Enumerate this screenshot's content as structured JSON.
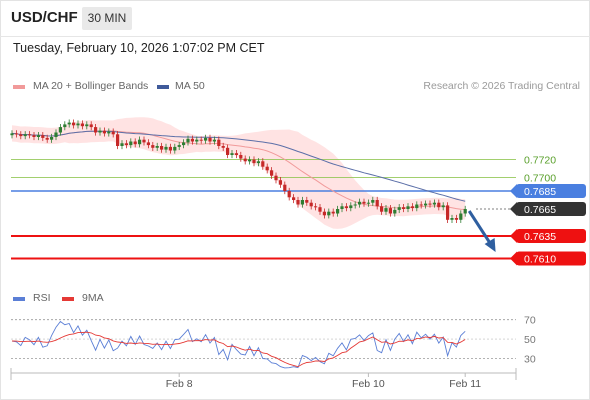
{
  "header": {
    "symbol": "USD/CHF",
    "timeframe": "30 MIN",
    "timestamp": "Tuesday, February 10, 2026 1:07:02 PM CET"
  },
  "legend": {
    "ma20_label": "MA 20 + Bollinger Bands",
    "ma50_label": "MA 50",
    "credit": "Research © 2026 Trading Central",
    "rsi_label": "RSI",
    "rsi_ma_label": "9MA"
  },
  "colors": {
    "band": "#ffd9d9",
    "ma20": "#f19a9a",
    "ma50": "#5b6fa8",
    "up": "#2e7d32",
    "down": "#c62828",
    "rsi": "#5b7fd6",
    "rsi_ma": "#e53935",
    "green_level": "#8bc34a",
    "blue_level": "#4a7fe0",
    "red_level": "#ee1111",
    "last_price": "#333333",
    "arrow": "#2f5fa0"
  },
  "chart_data": [
    {
      "type": "candlestick",
      "symbol": "USD/CHF",
      "timeframe": "30 MIN",
      "ylim": [
        0.7595,
        0.7775
      ],
      "x_ticks": [
        {
          "label": "Feb 8",
          "index": 38
        },
        {
          "label": "Feb 10",
          "index": 81
        },
        {
          "label": "Feb 11",
          "index": 103
        }
      ],
      "levels": [
        {
          "value": 0.772,
          "label": "0.7720",
          "kind": "resistance",
          "color": "#8bc34a"
        },
        {
          "value": 0.77,
          "label": "0.7700",
          "kind": "resistance",
          "color": "#8bc34a"
        },
        {
          "value": 0.7685,
          "label": "0.7685",
          "kind": "pivot",
          "color": "#4a7fe0"
        },
        {
          "value": 0.7665,
          "label": "0.7665",
          "kind": "last",
          "color": "#333333"
        },
        {
          "value": 0.7635,
          "label": "0.7635",
          "kind": "support",
          "color": "#ee1111"
        },
        {
          "value": 0.761,
          "label": "0.7610",
          "kind": "support",
          "color": "#ee1111"
        }
      ],
      "forecast_arrow": {
        "from_index": 103,
        "from": 0.7665,
        "to_index": 109,
        "to": 0.7615
      },
      "close": [
        0.7749,
        0.7748,
        0.7746,
        0.7748,
        0.7747,
        0.7745,
        0.7747,
        0.7744,
        0.7742,
        0.7745,
        0.775,
        0.7756,
        0.7759,
        0.7761,
        0.7758,
        0.776,
        0.7757,
        0.7759,
        0.7756,
        0.775,
        0.7752,
        0.7749,
        0.7751,
        0.7748,
        0.7735,
        0.7738,
        0.7736,
        0.774,
        0.7737,
        0.7742,
        0.7739,
        0.7736,
        0.7733,
        0.7735,
        0.7731,
        0.7734,
        0.773,
        0.7734,
        0.7736,
        0.7739,
        0.7743,
        0.774,
        0.7742,
        0.7741,
        0.7744,
        0.774,
        0.7742,
        0.7735,
        0.7733,
        0.7725,
        0.7727,
        0.7725,
        0.7721,
        0.7718,
        0.772,
        0.7716,
        0.7718,
        0.7712,
        0.7708,
        0.7702,
        0.7697,
        0.7692,
        0.7685,
        0.7678,
        0.7675,
        0.767,
        0.7675,
        0.7672,
        0.7668,
        0.7667,
        0.7662,
        0.7658,
        0.7662,
        0.766,
        0.7665,
        0.7668,
        0.7666,
        0.7669,
        0.767,
        0.7673,
        0.7671,
        0.7672,
        0.7675,
        0.7668,
        0.7662,
        0.7666,
        0.766,
        0.7664,
        0.7667,
        0.7665,
        0.7668,
        0.7666,
        0.767,
        0.7669,
        0.7671,
        0.767,
        0.7672,
        0.7667,
        0.7669,
        0.7653,
        0.7655,
        0.7653,
        0.766,
        0.7665
      ]
    },
    {
      "type": "line",
      "name": "RSI",
      "ylim": [
        18,
        80
      ],
      "y_ticks": [
        70,
        50,
        30
      ],
      "values": [
        48.0,
        47.1,
        43.2,
        51.7,
        49.1,
        44.1,
        51.7,
        41.6,
        43.0,
        53.5,
        62.2,
        68.1,
        64.8,
        66.0,
        56.6,
        63.6,
        54.0,
        59.1,
        48.4,
        38.5,
        49.6,
        40.6,
        49.1,
        37.9,
        40.6,
        47.9,
        43.0,
        52.7,
        44.5,
        53.1,
        44.4,
        42.8,
        40.3,
        45.9,
        39.1,
        47.8,
        40.1,
        49.3,
        49.9,
        54.8,
        59.8,
        47.3,
        50.2,
        47.2,
        54.6,
        45.8,
        51.6,
        33.9,
        39.3,
        28.5,
        44.6,
        39.1,
        34.4,
        33.5,
        42.4,
        32.8,
        41.0,
        29.8,
        29.5,
        25.4,
        24.6,
        21.5,
        20.2,
        20.4,
        21.4,
        20.5,
        33.0,
        31.1,
        27.7,
        30.9,
        26.7,
        24.4,
        35.3,
        32.7,
        40.4,
        46.0,
        38.8,
        49.7,
        50.5,
        54.3,
        48.5,
        53.5,
        56.3,
        38.2,
        35.9,
        49.3,
        38.3,
        49.9,
        55.7,
        47.4,
        54.4,
        45.2,
        57.1,
        51.2,
        55.0,
        49.8,
        55.0,
        45.8,
        52.0,
        32.8,
        46.2,
        41.7,
        53.7,
        58.0
      ]
    },
    {
      "type": "line",
      "name": "9MA",
      "values": [
        48.0,
        47.9,
        47.3,
        47.6,
        47.8,
        47.4,
        47.9,
        47.0,
        46.6,
        47.3,
        48.8,
        51.1,
        53.0,
        54.6,
        55.3,
        56.6,
        56.7,
        57.1,
        56.3,
        54.1,
        53.3,
        51.2,
        50.3,
        48.1,
        46.9,
        46.5,
        45.5,
        45.9,
        45.2,
        46.0,
        45.6,
        45.3,
        44.6,
        44.8,
        44.1,
        44.6,
        44.1,
        44.8,
        45.4,
        46.6,
        48.2,
        48.1,
        48.4,
        48.3,
        49.4,
        48.9,
        49.2,
        46.7,
        45.4,
        42.1,
        42.8,
        41.8,
        39.9,
        38.5,
        39.5,
        37.9,
        38.3,
        35.6,
        34.8,
        32.2,
        30.7,
        28.1,
        25.9,
        24.0,
        22.8,
        21.4,
        24.1,
        25.7,
        26.2,
        27.4,
        27.3,
        26.8,
        29.5,
        30.5,
        33.1,
        35.9,
        36.8,
        40.6,
        43.7,
        47.0,
        48.1,
        50.1,
        52.1,
        49.3,
        46.6,
        47.1,
        44.9,
        45.9,
        47.8,
        47.7,
        49.1,
        48.2,
        50.7,
        50.8,
        52.1,
        51.6,
        52.7,
        51.1,
        51.5,
        46.6,
        46.5,
        44.9,
        46.8,
        49.5
      ]
    }
  ]
}
